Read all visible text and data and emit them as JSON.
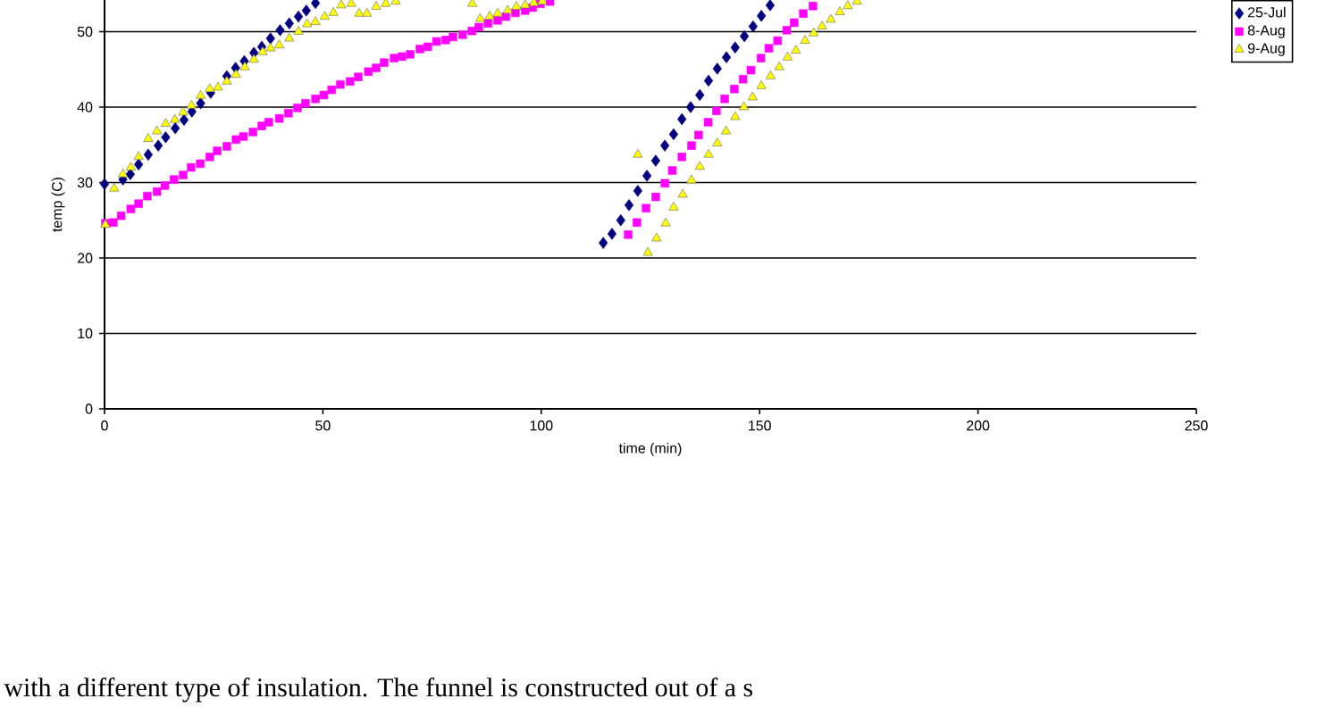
{
  "chart_data": {
    "type": "scatter",
    "xlabel": "time (min)",
    "ylabel": "temp (C)",
    "xlim": [
      0,
      250
    ],
    "xticks": [
      0,
      50,
      100,
      150,
      200,
      250
    ],
    "ylim": [
      0,
      54.2
    ],
    "yticks": [
      0,
      10,
      20,
      30,
      40,
      50
    ],
    "grid": "y",
    "legend": "top right",
    "annotations": [
      "with a different type of insulation. The funnel is constructed out of a s"
    ],
    "series": [
      {
        "name": "25-Jul",
        "color": "#000080",
        "marker": "diamond",
        "x": [
          0,
          4.2,
          5.9,
          7.8,
          10,
          12.3,
          14,
          16.2,
          18.2,
          20,
          22,
          24.3,
          26.2,
          28,
          30,
          32,
          34.2,
          36,
          38,
          40.2,
          42.3,
          44.4,
          46.2,
          48.3,
          114.2,
          116.2,
          118.2,
          120.1,
          122.1,
          124.2,
          126.2,
          128.3,
          130.3,
          132.2,
          134.2,
          136.3,
          138.3,
          140.3,
          142.4,
          144.4,
          146.5,
          148.5,
          150.4,
          152.4
        ],
        "values": [
          29.8,
          30.4,
          31.1,
          32.4,
          33.7,
          34.9,
          36,
          37.2,
          38.3,
          39.4,
          40.5,
          41.9,
          null,
          44.1,
          45.2,
          46.1,
          47.2,
          48,
          49.1,
          50.2,
          51.1,
          52,
          52.8,
          53.8,
          22,
          23.2,
          25,
          27,
          28.9,
          30.9,
          32.9,
          34.9,
          36.4,
          38.4,
          40,
          41.6,
          43.5,
          45.1,
          46.6,
          47.9,
          49.4,
          50.7,
          52.1,
          53.5
        ]
      },
      {
        "name": "8-Aug",
        "color": "#ff00ff",
        "marker": "square",
        "x": [
          0.2,
          2,
          3.8,
          6,
          7.8,
          9.8,
          12,
          13.8,
          15.9,
          18,
          19.8,
          21.9,
          24.1,
          25.8,
          28,
          30.1,
          31.8,
          34,
          36,
          37.6,
          40,
          42.1,
          44.2,
          46,
          48.3,
          50.2,
          52,
          54,
          56.2,
          58.1,
          60.4,
          62.2,
          64,
          66.3,
          68.1,
          70,
          72.2,
          74,
          76,
          78.1,
          79.8,
          82,
          84.1,
          85.7,
          87.8,
          90,
          91.9,
          94.1,
          96.3,
          98,
          99.8,
          102,
          119.9,
          121.9,
          124,
          126.2,
          128.3,
          130,
          132.2,
          134.4,
          136,
          138.2,
          140.1,
          142,
          144.2,
          146.2,
          148,
          150.3,
          152.1,
          154.1,
          156.2,
          157.9,
          160,
          162.2
        ],
        "values": [
          24.6,
          24.7,
          25.6,
          26.5,
          27.2,
          28.2,
          28.8,
          29.6,
          30.4,
          31,
          32,
          32.5,
          33.4,
          34.2,
          34.8,
          35.7,
          36.1,
          36.7,
          37.5,
          38,
          38.5,
          39.2,
          39.9,
          40.5,
          41.1,
          41.6,
          42.3,
          43,
          43.4,
          44,
          44.7,
          45.2,
          45.9,
          46.5,
          46.7,
          47,
          47.7,
          48,
          48.7,
          48.9,
          49.3,
          49.6,
          50.1,
          50.6,
          51.1,
          51.5,
          52,
          52.5,
          52.8,
          53.2,
          53.7,
          54,
          23.1,
          24.7,
          26.6,
          28.1,
          29.9,
          31.6,
          33.4,
          34.9,
          36.3,
          38,
          39.5,
          41.1,
          42.4,
          43.7,
          44.9,
          46.5,
          47.8,
          48.8,
          50.2,
          51.2,
          52.4,
          53.4
        ]
      },
      {
        "name": "9-Aug",
        "color": "#ffff00",
        "marker": "triangle",
        "x": [
          0.2,
          2.2,
          4.2,
          6,
          7.8,
          10,
          12,
          14,
          16.1,
          18,
          19.9,
          22,
          24.1,
          26,
          28,
          30.1,
          32.1,
          34.2,
          36.2,
          38,
          40,
          42.3,
          44.4,
          46.4,
          48.3,
          50.4,
          52.4,
          54.2,
          56.5,
          58.3,
          60.1,
          62.2,
          64.4,
          66.7,
          84.2,
          86,
          88.2,
          90,
          92.3,
          94.3,
          96.3,
          98.3,
          100.2,
          122.1,
          124.4,
          126.4,
          128.5,
          130.3,
          132.4,
          134.4,
          136.3,
          138.3,
          140.3,
          142.3,
          144.4,
          146.4,
          148.4,
          150.4,
          152.5,
          154.5,
          156.4,
          158.3,
          160.4,
          162.4,
          164.3,
          166.3,
          168.4,
          170.2,
          172.3
        ],
        "values": [
          24.4,
          29.2,
          31.1,
          32,
          33.4,
          35.8,
          36.8,
          37.8,
          38.3,
          39.3,
          40.2,
          41.5,
          42.4,
          42.6,
          43.4,
          44.3,
          45.3,
          46.3,
          47.3,
          47.8,
          48.2,
          49.1,
          50,
          51,
          51.3,
          52,
          52.5,
          53.5,
          53.7,
          52.4,
          52.4,
          53.3,
          53.7,
          54,
          53.7,
          51.7,
          52,
          52.4,
          52.8,
          53.3,
          53.5,
          53.8,
          54,
          33.7,
          20.7,
          22.6,
          24.6,
          26.7,
          28.4,
          30.3,
          32.1,
          33.7,
          35.2,
          36.8,
          38.7,
          40,
          41.3,
          42.8,
          44.1,
          45.3,
          46.6,
          47.5,
          48.8,
          49.8,
          50.7,
          51.6,
          52.6,
          53.4,
          54
        ]
      }
    ]
  }
}
